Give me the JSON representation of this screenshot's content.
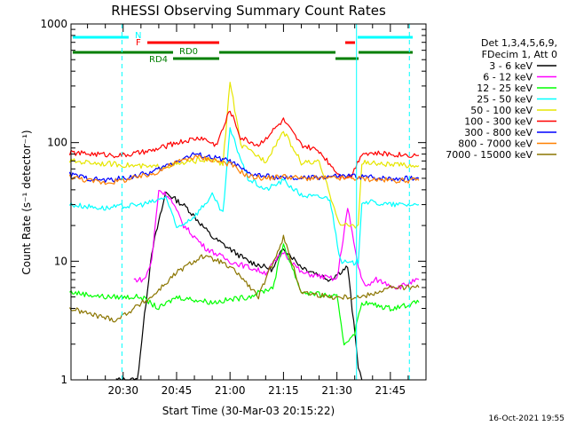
{
  "page_title": "RHESSI Observing Summary Count Rates",
  "footer_stamp": "16-Oct-2021 19:55",
  "chart_data": {
    "type": "line",
    "title": "RHESSI Observing Summary Count Rates",
    "xlabel": "Start Time (30-Mar-03 20:15:22)",
    "ylabel": "Count Rate (s⁻¹ detector⁻¹)",
    "yscale": "log",
    "ylim": [
      1,
      1000
    ],
    "xlim": [
      "20:15:22",
      "21:55:00"
    ],
    "x_ticks": [
      "20:30",
      "20:45",
      "21:00",
      "21:15",
      "21:30",
      "21:45"
    ],
    "y_ticks": [
      "1",
      "10",
      "100",
      "1000"
    ],
    "grid": false,
    "legend_position": "right",
    "legend_header": [
      "Det 1,3,4,5,6,9,",
      "FDecim 1, Att 0"
    ],
    "colors": {
      "3 - 6 keV": "#000000",
      "6 - 12 keV": "#ff00ff",
      "12 - 25 keV": "#00ff00",
      "25 - 50 keV": "#00ffff",
      "50 - 100 keV": "#e6e600",
      "100 - 300 keV": "#ff0000",
      "300 - 800 keV": "#0000ff",
      "800 - 7000 keV": "#ff8000",
      "7000 - 15000 keV": "#8b7500"
    },
    "series": [
      {
        "name": "3 - 6 keV",
        "x": [
          "20:28",
          "20:34",
          "20:38",
          "20:42",
          "20:48",
          "20:55",
          "21:05",
          "21:12",
          "21:15",
          "21:20",
          "21:28",
          "21:33",
          "21:36",
          "21:37"
        ],
        "y": [
          1.0,
          1.0,
          12,
          38,
          28,
          16,
          10,
          8.5,
          13,
          9,
          7,
          9,
          1.3,
          1.0
        ]
      },
      {
        "name": "6 - 12 keV",
        "x": [
          "20:33",
          "20:36",
          "20:38",
          "20:40",
          "20:43",
          "20:47",
          "20:53",
          "21:00",
          "21:10",
          "21:15",
          "21:20",
          "21:30",
          "21:33",
          "21:36",
          "21:38",
          "21:41",
          "21:47",
          "21:53"
        ],
        "y": [
          7,
          7,
          10,
          40,
          35,
          20,
          13,
          10,
          8,
          12,
          8,
          7,
          28,
          9,
          6,
          7,
          6,
          7
        ]
      },
      {
        "name": "12 - 25 keV",
        "x": [
          "20:15",
          "20:25",
          "20:35",
          "20:40",
          "20:45",
          "20:55",
          "21:05",
          "21:12",
          "21:15",
          "21:20",
          "21:30",
          "21:32",
          "21:35",
          "21:37",
          "21:45",
          "21:53"
        ],
        "y": [
          5.5,
          5,
          5,
          4,
          5,
          4.5,
          5,
          6,
          14,
          5.5,
          5,
          2,
          2.5,
          4.5,
          4,
          4.5
        ]
      },
      {
        "name": "25 - 50 keV",
        "x": [
          "20:15",
          "20:25",
          "20:35",
          "20:39",
          "20:42",
          "20:45",
          "20:50",
          "20:55",
          "20:58",
          "21:00",
          "21:05",
          "21:10",
          "21:15",
          "21:20",
          "21:28",
          "21:31",
          "21:34",
          "21:36",
          "21:37",
          "21:45",
          "21:53"
        ],
        "y": [
          30,
          28,
          30,
          32,
          35,
          19,
          24,
          36,
          25,
          130,
          50,
          40,
          48,
          36,
          34,
          10,
          9.5,
          10,
          32,
          30,
          30
        ]
      },
      {
        "name": "50 - 100 keV",
        "x": [
          "20:15",
          "20:30",
          "20:38",
          "20:45",
          "20:52",
          "20:56",
          "20:58",
          "21:00",
          "21:03",
          "21:10",
          "21:15",
          "21:20",
          "21:25",
          "21:31",
          "21:34",
          "21:36",
          "21:37",
          "21:45",
          "21:53"
        ],
        "y": [
          70,
          65,
          62,
          65,
          72,
          70,
          65,
          330,
          95,
          70,
          125,
          68,
          68,
          20,
          20,
          20,
          68,
          65,
          64
        ]
      },
      {
        "name": "100 - 300 keV",
        "x": [
          "20:15",
          "20:30",
          "20:38",
          "20:45",
          "20:52",
          "20:56",
          "20:58",
          "21:00",
          "21:03",
          "21:08",
          "21:15",
          "21:20",
          "21:25",
          "21:31",
          "21:34",
          "21:37",
          "21:45",
          "21:53"
        ],
        "y": [
          82,
          78,
          85,
          100,
          110,
          95,
          130,
          190,
          110,
          95,
          155,
          95,
          85,
          52,
          52,
          82,
          80,
          78
        ]
      },
      {
        "name": "300 - 800 keV",
        "x": [
          "20:15",
          "20:20",
          "20:25",
          "20:30",
          "20:38",
          "20:45",
          "20:50",
          "20:55",
          "21:00",
          "21:05",
          "21:10",
          "21:15",
          "21:20",
          "21:30",
          "21:35",
          "21:45",
          "21:53"
        ],
        "y": [
          54,
          50,
          48,
          50,
          56,
          70,
          80,
          75,
          70,
          55,
          52,
          50,
          50,
          52,
          52,
          50,
          50
        ]
      },
      {
        "name": "800 - 7000 keV",
        "x": [
          "20:15",
          "20:20",
          "20:25",
          "20:30",
          "20:38",
          "20:45",
          "20:50",
          "20:55",
          "21:00",
          "21:05",
          "21:10",
          "21:15",
          "21:20",
          "21:30",
          "21:35",
          "21:45",
          "21:53"
        ],
        "y": [
          52,
          48,
          46,
          48,
          54,
          68,
          76,
          72,
          66,
          52,
          50,
          52,
          50,
          50,
          50,
          48,
          48
        ]
      },
      {
        "name": "7000 - 15000 keV",
        "x": [
          "20:15",
          "20:22",
          "20:28",
          "20:33",
          "20:38",
          "20:45",
          "20:52",
          "20:57",
          "21:02",
          "21:08",
          "21:15",
          "21:20",
          "21:28",
          "21:33",
          "21:37",
          "21:45",
          "21:53"
        ],
        "y": [
          4,
          3.5,
          3.2,
          4,
          5,
          8,
          11,
          10,
          8,
          5,
          16,
          5.5,
          5,
          5,
          5,
          6,
          6
        ]
      }
    ],
    "annotations": [
      {
        "text": "N",
        "color": "#00ffff"
      },
      {
        "text": "F",
        "color": "#ff0000"
      },
      {
        "text": "RD0",
        "color": "#007f00"
      },
      {
        "text": "RD4",
        "color": "#007f00"
      }
    ]
  }
}
